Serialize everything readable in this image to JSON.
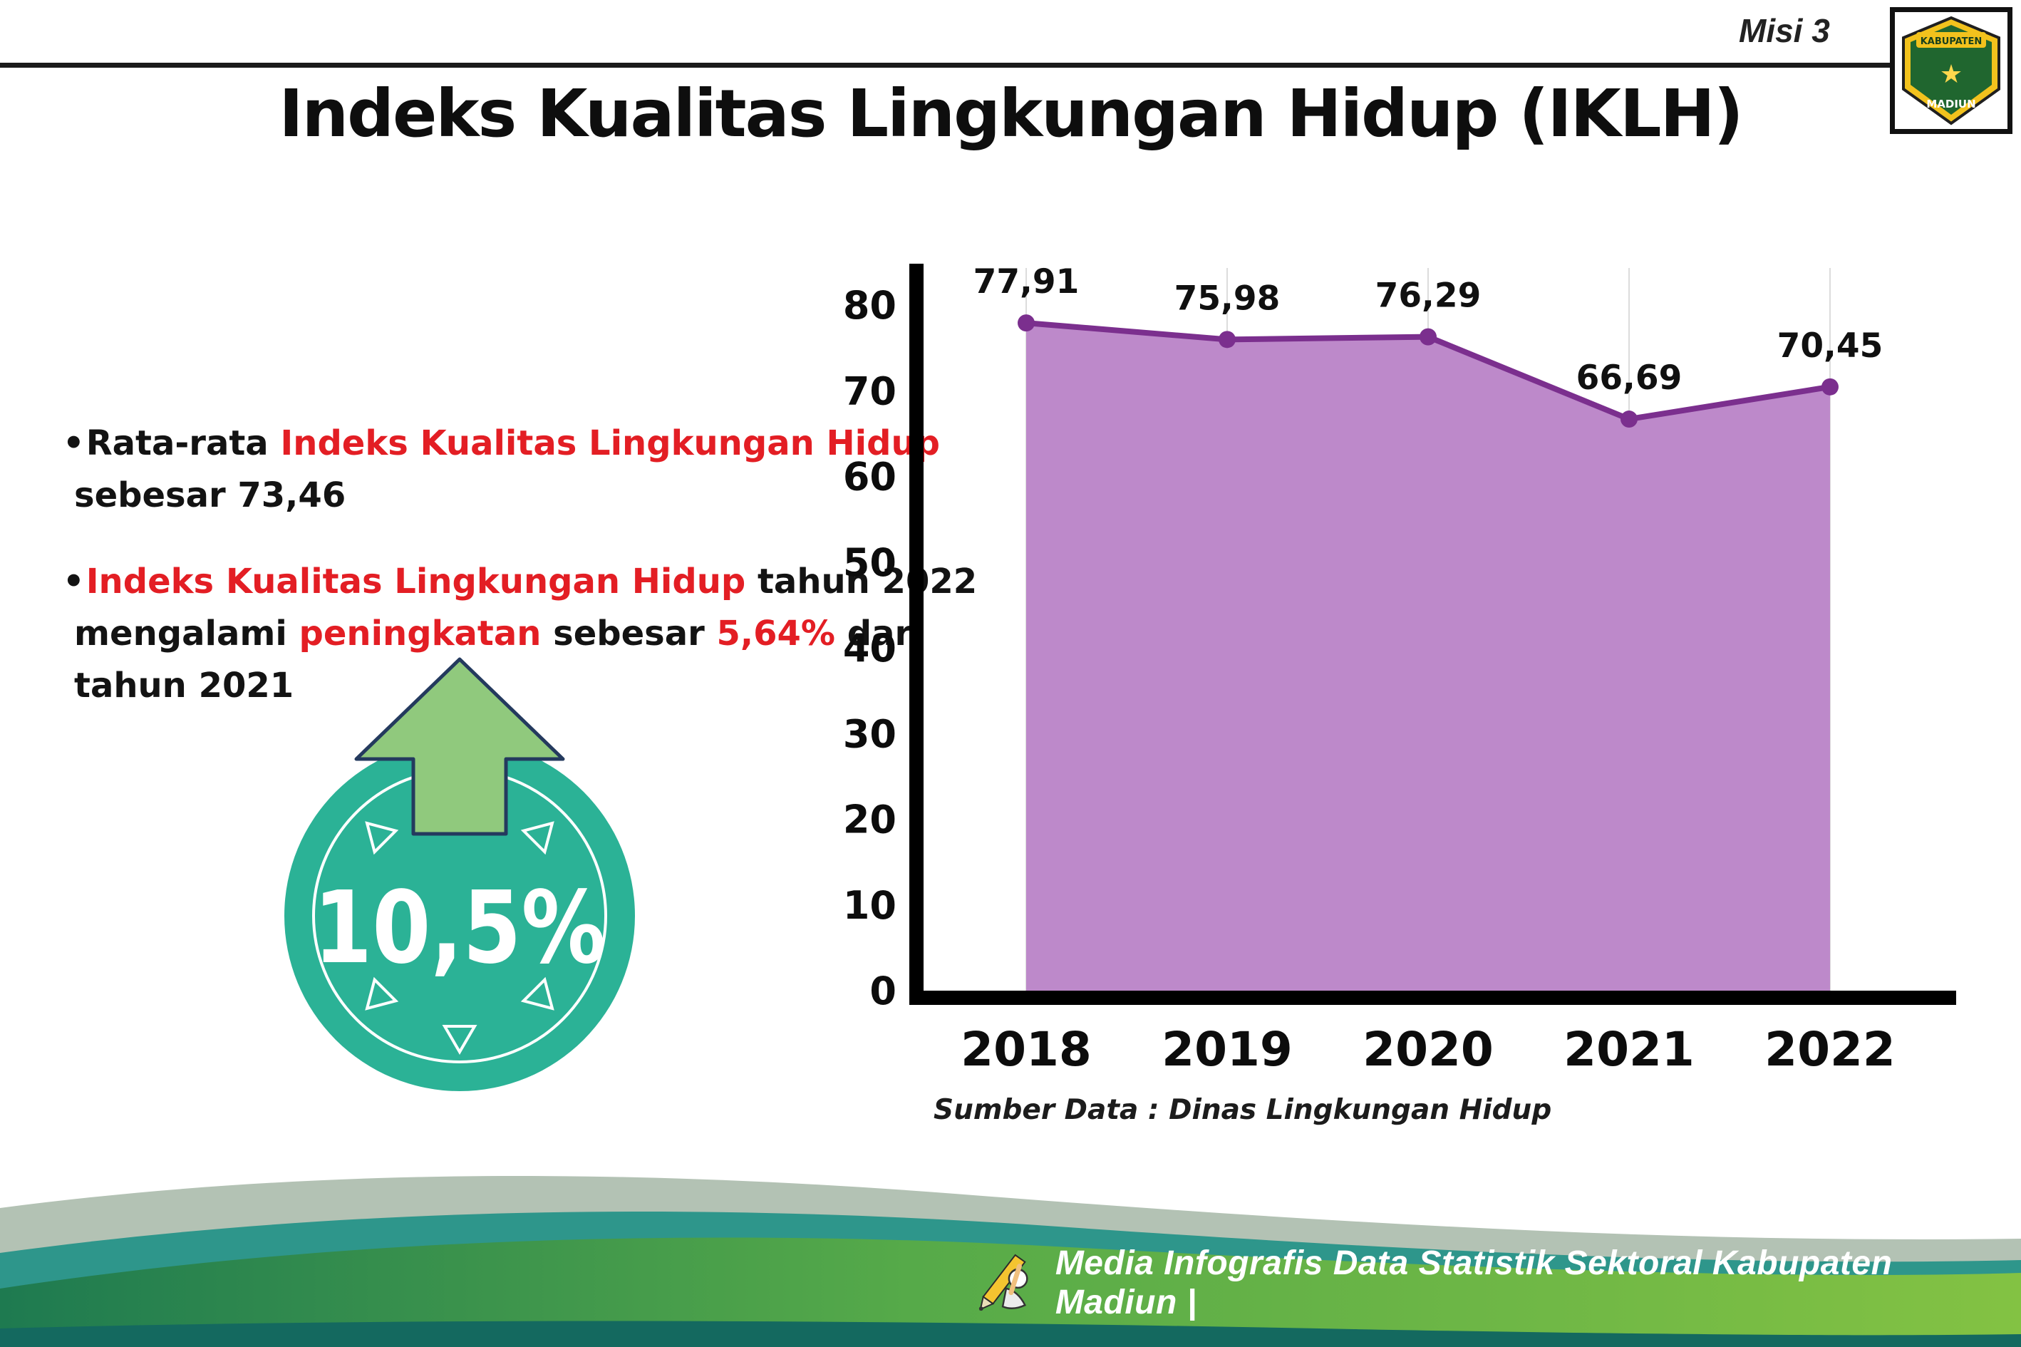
{
  "colors": {
    "accent_red": "#e31e24",
    "badge_teal": "#2bb296",
    "arrow_green": "#90c97d",
    "area_fill": "#bd89ca",
    "line_purple": "#7b2f8e",
    "axis_black": "#0c0c0c",
    "footer_green": "#56aa49",
    "footer_teal": "#2e968b"
  },
  "header": {
    "misi_label": "Misi 3",
    "title": "Indeks Kualitas Lingkungan Hidup (IKLH)",
    "logo": {
      "top_text": "KABUPATEN",
      "bottom_text": "MADIUN"
    }
  },
  "bullets": [
    {
      "lines": [
        [
          {
            "text": "Rata-rata ",
            "red": false
          },
          {
            "text": "Indeks Kualitas Lingkungan Hidup",
            "red": true
          }
        ],
        [
          {
            "text": "sebesar 73,46",
            "red": false
          }
        ]
      ]
    },
    {
      "lines": [
        [
          {
            "text": "Indeks Kualitas Lingkungan Hidup",
            "red": true
          },
          {
            "text": " tahun 2022",
            "red": false
          }
        ],
        [
          {
            "text": "mengalami ",
            "red": false
          },
          {
            "text": "peningkatan",
            "red": true
          },
          {
            "text": " sebesar ",
            "red": false
          },
          {
            "text": "5,64%",
            "red": true
          },
          {
            "text": " dari",
            "red": false
          }
        ],
        [
          {
            "text": "tahun 2021",
            "red": false
          }
        ]
      ]
    }
  ],
  "badge": {
    "value": "10,5%"
  },
  "chart_data": {
    "type": "area",
    "title": "",
    "categories": [
      "2018",
      "2019",
      "2020",
      "2021",
      "2022"
    ],
    "values": [
      77.91,
      75.98,
      76.29,
      66.69,
      70.45
    ],
    "point_labels": [
      "77,91",
      "75,98",
      "76,29",
      "66,69",
      "70,45"
    ],
    "ylim": [
      0,
      80
    ],
    "yticks": [
      0,
      10,
      20,
      30,
      40,
      50,
      60,
      70,
      80
    ],
    "grid": "vertical-light",
    "legend": "none",
    "source_note": "Sumber Data : Dinas Lingkungan Hidup",
    "colors": {
      "area_fill": "#bd89ca",
      "line": "#7b2f8e",
      "marker": "#7b2f8e"
    }
  },
  "footer": {
    "text": "Media Infografis Data Statistik Sektoral Kabupaten Madiun |"
  }
}
